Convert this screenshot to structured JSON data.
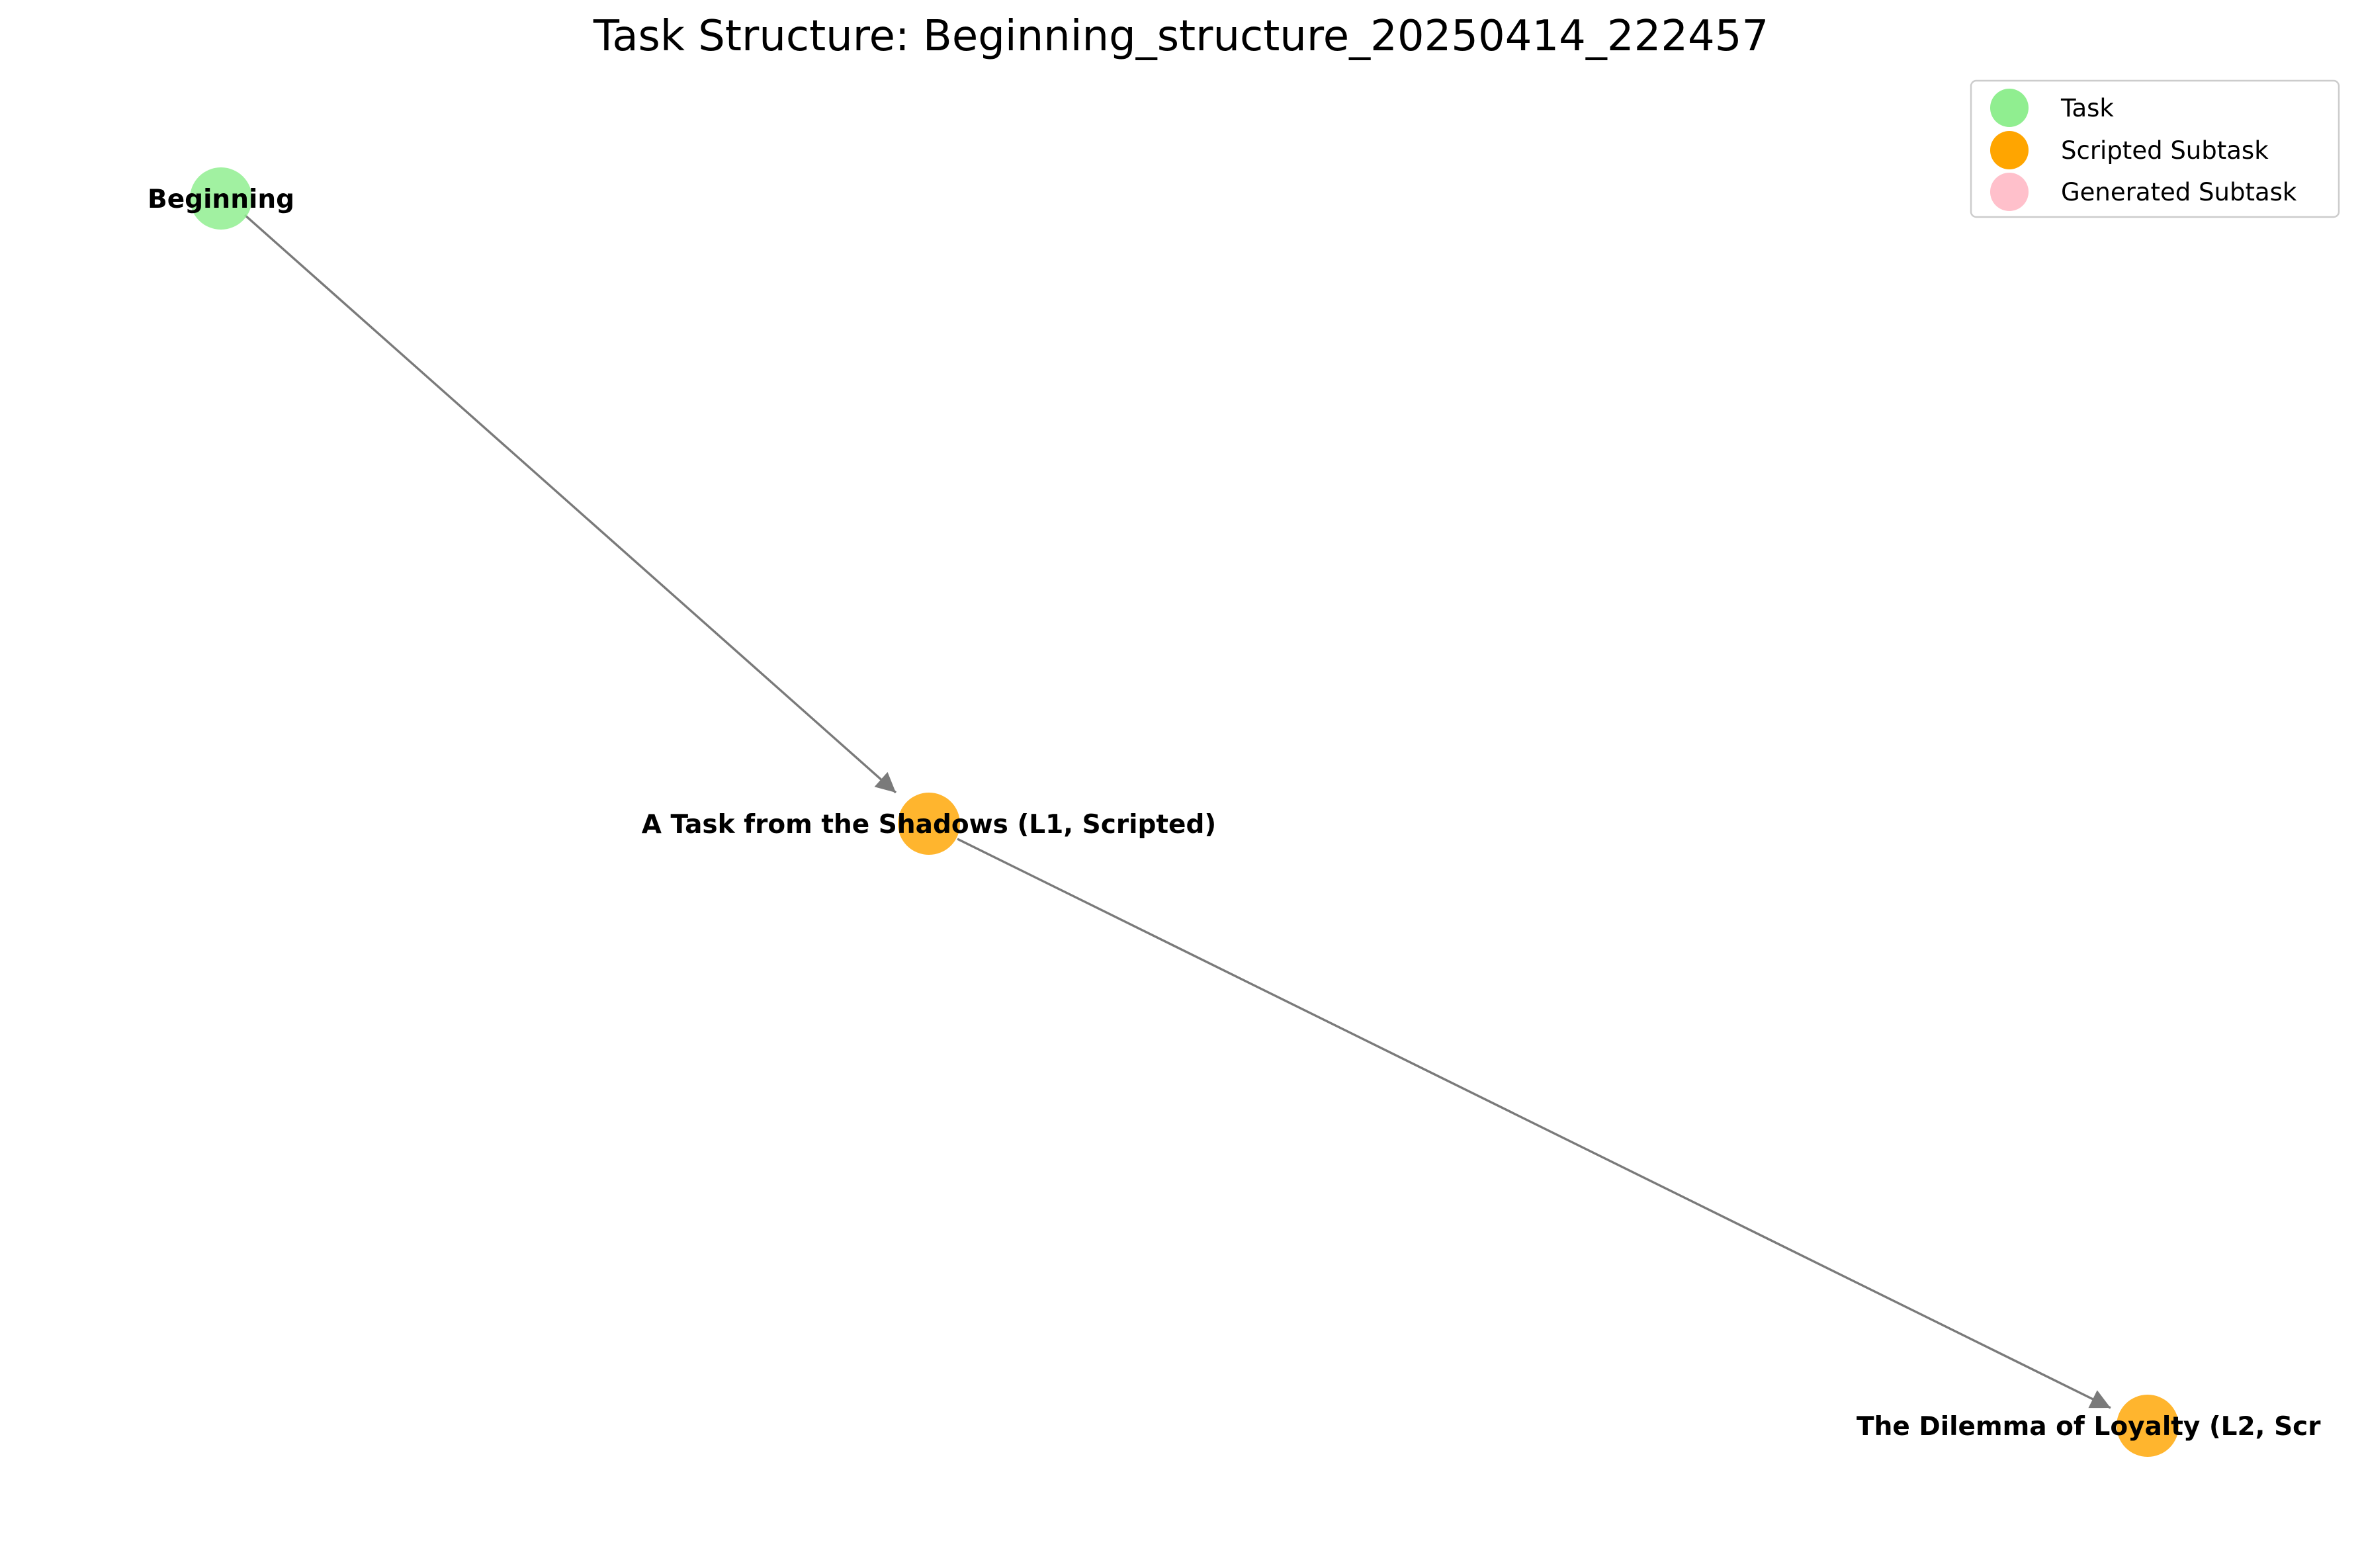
{
  "title": "Task Structure: Beginning_structure_20250414_222457",
  "colors": {
    "task": "#90EE90",
    "scripted_subtask": "#FFA500",
    "generated_subtask": "#FFC0CB",
    "edge": "#808080"
  },
  "legend": {
    "task_label": "Task",
    "scripted_label": "Scripted Subtask",
    "generated_label": "Generated Subtask"
  },
  "nodes": [
    {
      "id": "beginning",
      "label": "Beginning",
      "kind": "task"
    },
    {
      "id": "shadows",
      "label": "A Task from the Shadows (L1, Scripted)",
      "kind": "scripted_subtask"
    },
    {
      "id": "loyalty",
      "label": "The Dilemma of Loyalty (L2, Scr",
      "kind": "scripted_subtask"
    }
  ],
  "edges": [
    {
      "from": "beginning",
      "to": "shadows"
    },
    {
      "from": "shadows",
      "to": "loyalty"
    }
  ]
}
